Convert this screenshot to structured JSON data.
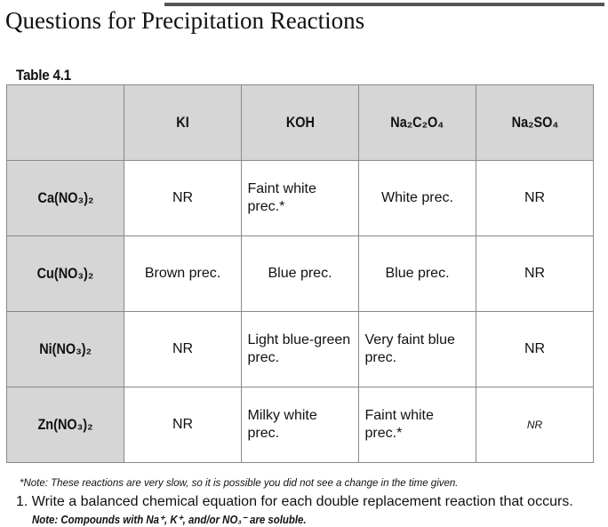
{
  "header": {
    "title": "Questions for Precipitation Reactions"
  },
  "table": {
    "label": "Table 4.1",
    "columns": [
      "KI",
      "KOH",
      "Na₂C₂O₄",
      "Na₂SO₄"
    ],
    "rows": [
      {
        "label": "Ca(NO₃)₂",
        "cells": [
          "NR",
          "Faint white prec.*",
          "White prec.",
          "NR"
        ]
      },
      {
        "label": "Cu(NO₃)₂",
        "cells": [
          "Brown prec.",
          "Blue prec.",
          "Blue prec.",
          "NR"
        ]
      },
      {
        "label": "Ni(NO₃)₂",
        "cells": [
          "NR",
          "Light blue-green prec.",
          "Very faint blue prec.",
          "NR"
        ]
      },
      {
        "label": "Zn(NO₃)₂",
        "cells": [
          "NR",
          "Milky white prec.",
          "Faint white prec.*",
          "NR"
        ]
      }
    ],
    "footnote": "*Note: These reactions are very slow, so it is possible you did not see a change in the time given."
  },
  "question": "1. Write a balanced chemical equation for each double replacement reaction that occurs.",
  "note": "Note: Compounds with Na⁺, K⁺, and/or NO₃⁻ are soluble."
}
